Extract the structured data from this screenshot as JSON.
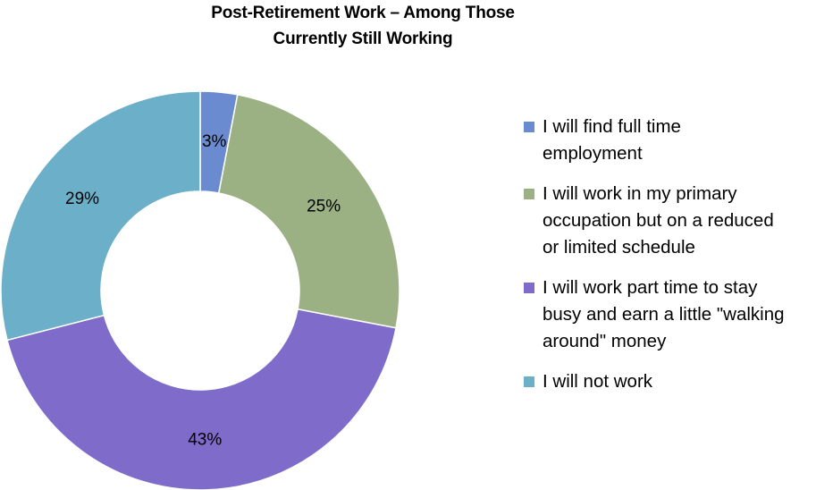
{
  "chart_data": {
    "type": "pie",
    "title_lines": [
      "Post-Retirement Work – Among Those",
      "Currently Still Working"
    ],
    "slices": [
      {
        "label_lines": [
          "I will find full time",
          "employment"
        ],
        "value": 3,
        "display": "3%",
        "color": "#6B8BD1"
      },
      {
        "label_lines": [
          "I will work in my primary",
          "occupation but on a reduced",
          "or limited schedule"
        ],
        "value": 25,
        "display": "25%",
        "color": "#9BB184"
      },
      {
        "label_lines": [
          "I will work part time to stay",
          "busy and earn a little \"walking",
          "around\" money"
        ],
        "value": 43,
        "display": "43%",
        "color": "#7F6BC9"
      },
      {
        "label_lines": [
          "I will not work"
        ],
        "value": 29,
        "display": "29%",
        "color": "#6BAFC8"
      }
    ],
    "legend_position": "right"
  }
}
